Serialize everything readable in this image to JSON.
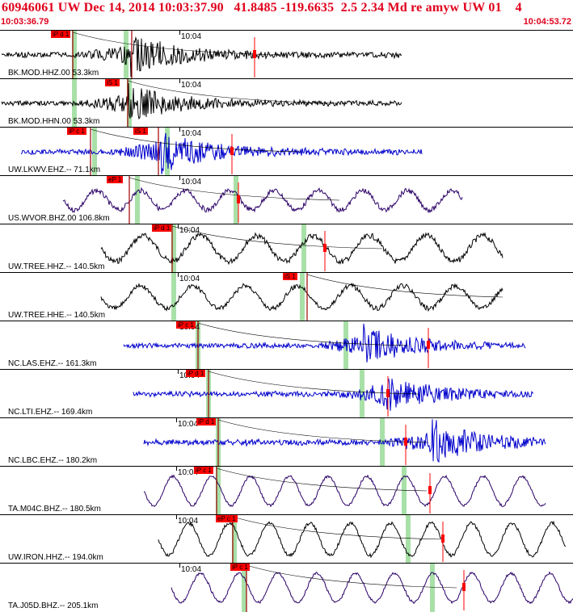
{
  "header": {
    "title": "60946061 UW Dec 14, 2014 10:03:37.90   41.8485 -119.6635  2.5 2.34 Md re amyw UW 01    4",
    "time_start": "10:03:36.79",
    "time_end": "10:04:53.72",
    "color": "#e0001c"
  },
  "colors": {
    "black_trace": "#000000",
    "blue_trace": "#0000cc",
    "purple_trace": "#2a0066",
    "green_band": "#a8e0a8",
    "pick_red": "#ff0000"
  },
  "minute_label": "10:04",
  "panels": [
    {
      "station": "BK.MOD.HHZ.00 53.3km",
      "color": "#000000",
      "picks": [
        {
          "label": "iP d 1"
        }
      ]
    },
    {
      "station": "BK.MOD.HHN.00 53.3km",
      "color": "#000000",
      "picks": [
        {
          "label": "iS 1"
        }
      ]
    },
    {
      "station": "UW.LKWV.EHZ.-- 71.1km",
      "color": "#0000cc",
      "picks": [
        {
          "label": "iP c 1"
        },
        {
          "label": "iS 1"
        }
      ]
    },
    {
      "station": "US.WVOR.BHZ.00 106.8km",
      "color": "#2a0066",
      "picks": [
        {
          "label": "eP 1"
        }
      ]
    },
    {
      "station": "UW.TREE.HHZ.-- 140.5km",
      "color": "#000000",
      "picks": [
        {
          "label": "iP d 1"
        }
      ]
    },
    {
      "station": "UW.TREE.HHE.-- 140.5km",
      "color": "#000000",
      "picks": [
        {
          "label": "iS 1"
        }
      ]
    },
    {
      "station": "NC.LAS.EHZ.-- 161.3km",
      "color": "#0000cc",
      "picks": [
        {
          "label": "iP c 1"
        }
      ]
    },
    {
      "station": "NC.LTI.EHZ.-- 169.4km",
      "color": "#0000cc",
      "picks": [
        {
          "label": "iP d 1"
        }
      ]
    },
    {
      "station": "NC.LBC.EHZ.-- 180.2km",
      "color": "#0000cc",
      "picks": [
        {
          "label": "iP d 1"
        }
      ]
    },
    {
      "station": "TA.M04C.BHZ.-- 180.5km",
      "color": "#2a0066",
      "picks": [
        {
          "label": "iP c 1"
        }
      ]
    },
    {
      "station": "UW.IRON.HHZ.-- 194.0km",
      "color": "#000000",
      "picks": [
        {
          "label": "eP c 1"
        }
      ]
    },
    {
      "station": "TA.J05D.BHZ.-- 205.1km",
      "color": "#2a0066",
      "picks": [
        {
          "label": "iP c 1"
        }
      ]
    }
  ]
}
